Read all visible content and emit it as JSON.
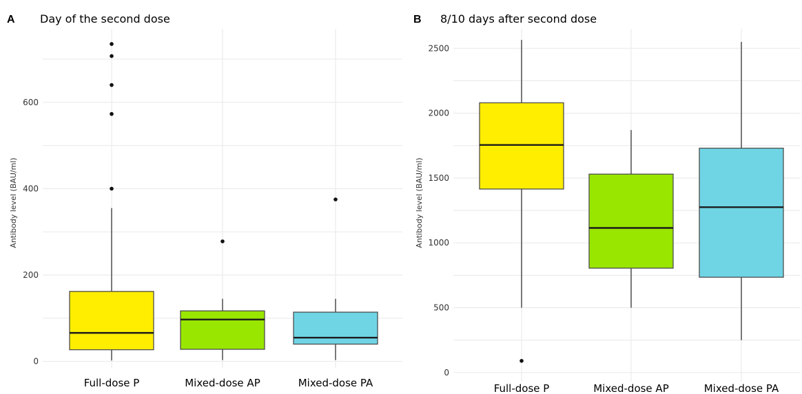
{
  "chart_data": [
    {
      "type": "box",
      "panel_letter": "A",
      "title": "Day of the second dose",
      "ylabel": "Antibody level (BAU/ml)",
      "xlabel": "",
      "ylim": [
        -15,
        770
      ],
      "yticks": [
        0,
        200,
        400,
        600
      ],
      "ytick_labels": [
        "0",
        "200",
        "400",
        "600"
      ],
      "grid": true,
      "categories": [
        "Full-dose P",
        "Mixed-dose AP",
        "Mixed-dose PA"
      ],
      "colors": [
        "#FFEE00",
        "#99E600",
        "#6FD5E5"
      ],
      "boxes": [
        {
          "q1": 27,
          "median": 66,
          "q3": 162,
          "whisker_low": 2,
          "whisker_high": 355,
          "outliers": [
            400,
            573,
            640,
            707,
            735
          ]
        },
        {
          "q1": 28,
          "median": 97,
          "q3": 117,
          "whisker_low": 3,
          "whisker_high": 145,
          "outliers": [
            278
          ]
        },
        {
          "q1": 40,
          "median": 55,
          "q3": 114,
          "whisker_low": 3,
          "whisker_high": 145,
          "outliers": [
            375
          ]
        }
      ]
    },
    {
      "type": "box",
      "panel_letter": "B",
      "title": "8/10 days after second dose",
      "ylabel": "Antibody level (BAU/ml)",
      "xlabel": "",
      "ylim": [
        -70,
        2650
      ],
      "yticks": [
        0,
        500,
        1000,
        1500,
        2000,
        2500
      ],
      "ytick_labels": [
        "0",
        "500",
        "1000",
        "1500",
        "2000",
        "2500"
      ],
      "grid": true,
      "categories": [
        "Full-dose P",
        "Mixed-dose AP",
        "Mixed-dose PA"
      ],
      "colors": [
        "#FFEE00",
        "#99E600",
        "#6FD5E5"
      ],
      "boxes": [
        {
          "q1": 1415,
          "median": 1755,
          "q3": 2080,
          "whisker_low": 500,
          "whisker_high": 2565,
          "outliers": [
            90
          ]
        },
        {
          "q1": 805,
          "median": 1115,
          "q3": 1530,
          "whisker_low": 500,
          "whisker_high": 1870,
          "outliers": []
        },
        {
          "q1": 735,
          "median": 1275,
          "q3": 1730,
          "whisker_low": 250,
          "whisker_high": 2550,
          "outliers": []
        }
      ]
    }
  ]
}
